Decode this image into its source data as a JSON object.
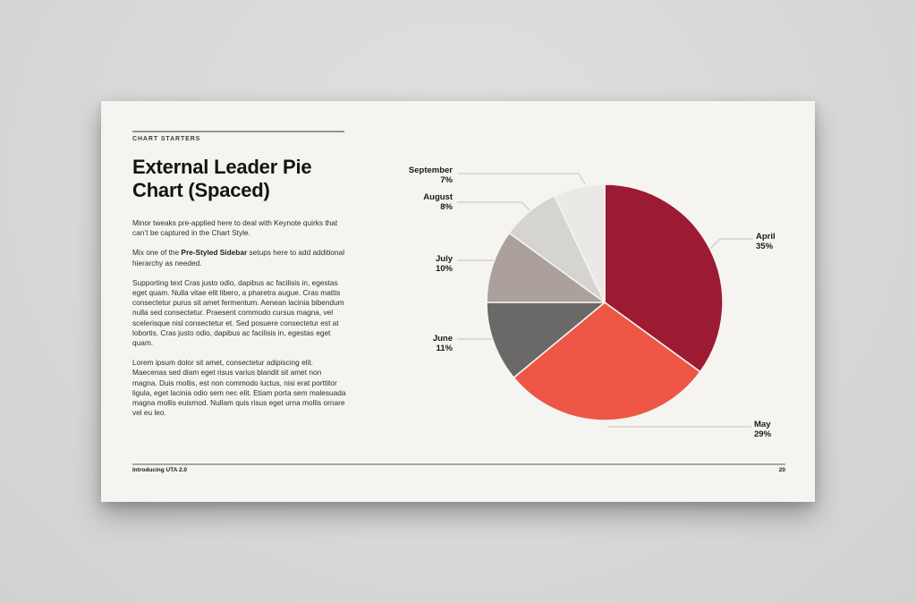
{
  "slide": {
    "eyebrow": "CHART STARTERS",
    "title": "External Leader Pie Chart (Spaced)",
    "body": {
      "p1": "Minor tweaks pre-applied here to deal with Keynote quirks that can’t be captured in the Chart Style.",
      "p2_prefix": "Mix one of the ",
      "p2_bold": "Pre-Styled Sidebar",
      "p2_suffix": " setups here to add additional hierarchy as needed.",
      "p3": "Supporting text Cras justo odio, dapibus ac facilisis in, egestas eget quam. Nulla vitae elit libero, a pharetra augue. Cras mattis consectetur purus sit amet fermentum. Aenean lacinia bibendum nulla sed consectetur. Praesent commodo cursus magna, vel scelerisque nisl consectetur et. Sed posuere consectetur est at lobortis. Cras justo odio, dapibus ac facilisis in, egestas eget quam.",
      "p4": "Lorem ipsum dolor sit amet, consectetur adipiscing elit. Maecenas sed diam eget risus varius blandit sit amet non magna. Duis mollis, est non commodo luctus, nisi erat porttitor ligula, eget lacinia odio sem nec elit. Etiam porta sem malesuada magna mollis euismod. Nullam quis risus eget urna mollis ornare vel eu leo."
    },
    "footer": {
      "left_text": "Introducing UTA 2.0",
      "page_number": "20"
    }
  },
  "chart_data": {
    "type": "pie",
    "title": "External Leader Pie Chart (Spaced)",
    "categories": [
      "April",
      "May",
      "June",
      "July",
      "August",
      "September"
    ],
    "values": [
      35,
      29,
      11,
      10,
      8,
      7
    ],
    "display_values": [
      "35%",
      "29%",
      "11%",
      "10%",
      "8%",
      "7%"
    ],
    "unit": "%",
    "colors": [
      "#9c1b32",
      "#ee5645",
      "#6b6868",
      "#aba09b",
      "#d6d4d0",
      "#eae9e6"
    ],
    "start_angle_deg": 0,
    "direction": "clockwise",
    "slice_gap_color": "#f5f4f1",
    "label_style": "external-leader-lines",
    "legend_position": "none"
  }
}
